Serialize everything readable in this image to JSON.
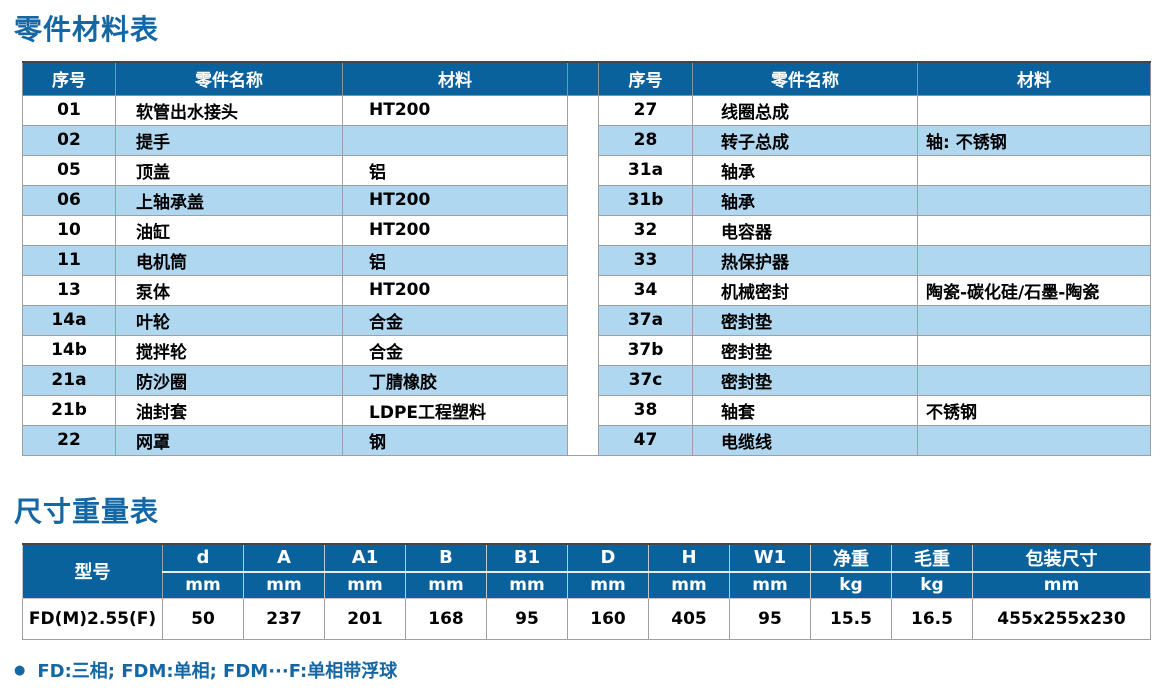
{
  "parts_table": {
    "title": "零件材料表",
    "headers": {
      "no": "序号",
      "name": "零件名称",
      "material": "材料"
    },
    "left_rows": [
      {
        "no": "01",
        "name": "软管出水接头",
        "material": "HT200"
      },
      {
        "no": "02",
        "name": "提手",
        "material": ""
      },
      {
        "no": "05",
        "name": "顶盖",
        "material": "铝"
      },
      {
        "no": "06",
        "name": "上轴承盖",
        "material": "HT200"
      },
      {
        "no": "10",
        "name": "油缸",
        "material": "HT200"
      },
      {
        "no": "11",
        "name": "电机筒",
        "material": "铝"
      },
      {
        "no": "13",
        "name": "泵体",
        "material": "HT200"
      },
      {
        "no": "14a",
        "name": "叶轮",
        "material": "合金"
      },
      {
        "no": "14b",
        "name": "搅拌轮",
        "material": "合金"
      },
      {
        "no": "21a",
        "name": "防沙圈",
        "material": "丁腈橡胶"
      },
      {
        "no": "21b",
        "name": "油封套",
        "material": "LDPE工程塑料"
      },
      {
        "no": "22",
        "name": "网罩",
        "material": "钢"
      }
    ],
    "right_rows": [
      {
        "no": "27",
        "name": "线圈总成",
        "material": ""
      },
      {
        "no": "28",
        "name": "转子总成",
        "material": "轴: 不锈钢"
      },
      {
        "no": "31a",
        "name": "轴承",
        "material": ""
      },
      {
        "no": "31b",
        "name": "轴承",
        "material": ""
      },
      {
        "no": "32",
        "name": "电容器",
        "material": ""
      },
      {
        "no": "33",
        "name": "热保护器",
        "material": ""
      },
      {
        "no": "34",
        "name": "机械密封",
        "material": "陶瓷-碳化硅/石墨-陶瓷"
      },
      {
        "no": "37a",
        "name": "密封垫",
        "material": ""
      },
      {
        "no": "37b",
        "name": "密封垫",
        "material": ""
      },
      {
        "no": "37c",
        "name": "密封垫",
        "material": ""
      },
      {
        "no": "38",
        "name": "轴套",
        "material": "不锈钢"
      },
      {
        "no": "47",
        "name": "电缆线",
        "material": ""
      }
    ]
  },
  "dims_table": {
    "title": "尺寸重量表",
    "model_header": "型号",
    "columns": [
      {
        "label": "d",
        "unit": "mm"
      },
      {
        "label": "A",
        "unit": "mm"
      },
      {
        "label": "A1",
        "unit": "mm"
      },
      {
        "label": "B",
        "unit": "mm"
      },
      {
        "label": "B1",
        "unit": "mm"
      },
      {
        "label": "D",
        "unit": "mm"
      },
      {
        "label": "H",
        "unit": "mm"
      },
      {
        "label": "W1",
        "unit": "mm"
      },
      {
        "label": "净重",
        "unit": "kg"
      },
      {
        "label": "毛重",
        "unit": "kg"
      },
      {
        "label": "包装尺寸",
        "unit": "mm"
      }
    ],
    "rows": [
      {
        "model": "FD(M)2.55(F)",
        "values": [
          "50",
          "237",
          "201",
          "168",
          "95",
          "160",
          "405",
          "95",
          "15.5",
          "16.5",
          "455x255x230"
        ]
      }
    ]
  },
  "footnote": {
    "bullet": "●",
    "text": "FD:三相; FDM:单相; FDM···F:单相带浮球"
  },
  "colors": {
    "header_blue": "#0A629C",
    "row_alt_blue": "#AFD7EF",
    "title_blue": "#1567A3",
    "border_gray": "#9D9FA2"
  }
}
